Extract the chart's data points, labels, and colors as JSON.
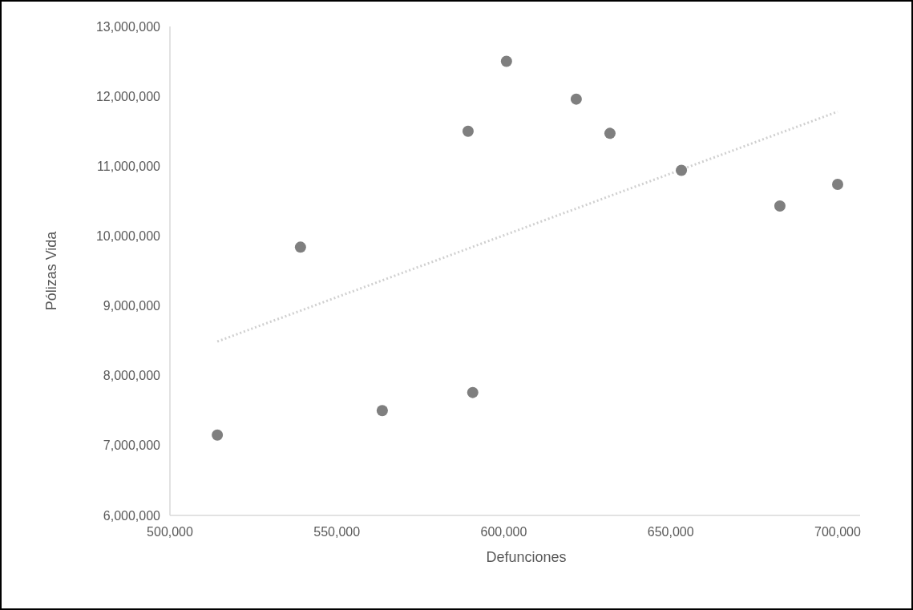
{
  "chart_data": {
    "type": "scatter",
    "xlabel": "Defunciones",
    "ylabel": "Pólizas Vida",
    "xlim": [
      500000,
      706723
    ],
    "xticks": [
      {
        "value": 500000,
        "label": "500,000"
      },
      {
        "value": 550000,
        "label": "550,000"
      },
      {
        "value": 600000,
        "label": "600,000"
      },
      {
        "value": 650000,
        "label": "650,000"
      },
      {
        "value": 700000,
        "label": "700,000"
      }
    ],
    "ylim": [
      6000000,
      13000000
    ],
    "yticks": [
      {
        "value": 6000000,
        "label": "6,000,000"
      },
      {
        "value": 7000000,
        "label": "7,000,000"
      },
      {
        "value": 8000000,
        "label": "8,000,000"
      },
      {
        "value": 9000000,
        "label": "9,000,000"
      },
      {
        "value": 10000000,
        "label": "10,000,000"
      },
      {
        "value": 11000000,
        "label": "11,000,000"
      },
      {
        "value": 12000000,
        "label": "12,000,000"
      },
      {
        "value": 13000000,
        "label": "13,000,000"
      }
    ],
    "grid": false,
    "series": [
      {
        "color": "#7f7f7f",
        "marker": "circle",
        "x": [
          514200,
          539100,
          563600,
          589300,
          590700,
          600800,
          621700,
          631800,
          653200,
          682700,
          700000
        ],
        "values": [
          7150000,
          9840000,
          7500000,
          11500000,
          7760000,
          12500000,
          11960000,
          11470000,
          10940000,
          10430000,
          10740000
        ]
      },
      {
        "type": "line",
        "color": "#d0d0d0",
        "marker": "none",
        "line_style": "dotted",
        "x": [
          514200,
          700000
        ],
        "values": [
          8490000,
          11780000
        ]
      }
    ]
  }
}
